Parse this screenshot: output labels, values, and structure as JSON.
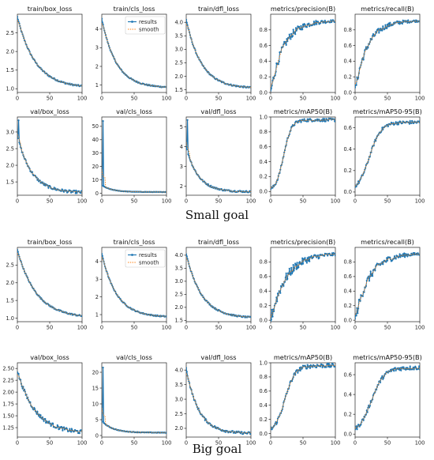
{
  "captions": [
    "Small goal",
    "Big goal"
  ],
  "legend": {
    "results": "results",
    "smooth": "smooth"
  },
  "colors": {
    "results": "#1f77b4",
    "smooth": "#ff7f0e"
  },
  "chart_data": [
    {
      "group": "Small goal",
      "type": "line",
      "panels": [
        {
          "title": "train/box_loss",
          "xlim": [
            0,
            100
          ],
          "ylim": [
            0.9,
            3.0
          ],
          "yticks": [
            1.0,
            1.5,
            2.0,
            2.5
          ],
          "xticks": [
            0,
            50,
            100
          ],
          "curve": {
            "kind": "decay",
            "start": 2.93,
            "end": 1.02,
            "rate": 3.6,
            "noise": 0.02,
            "late": 0.0
          }
        },
        {
          "title": "train/cls_loss",
          "xlim": [
            0,
            100
          ],
          "ylim": [
            0.6,
            4.8
          ],
          "yticks": [
            1,
            2,
            3,
            4
          ],
          "xticks": [
            0,
            50,
            100
          ],
          "legend": true,
          "curve": {
            "kind": "decay",
            "start": 4.55,
            "end": 0.85,
            "rate": 4.5,
            "noise": 0.03,
            "late": 0.0
          }
        },
        {
          "title": "train/dfl_loss",
          "xlim": [
            0,
            100
          ],
          "ylim": [
            1.4,
            4.3
          ],
          "yticks": [
            1.5,
            2.0,
            2.5,
            3.0,
            3.5,
            4.0
          ],
          "xticks": [
            0,
            50,
            100
          ],
          "curve": {
            "kind": "decay",
            "start": 4.1,
            "end": 1.55,
            "rate": 4.3,
            "noise": 0.025,
            "late": 0.0
          }
        },
        {
          "title": "metrics/precision(B)",
          "xlim": [
            0,
            100
          ],
          "ylim": [
            0.0,
            1.0
          ],
          "yticks": [
            0.0,
            0.2,
            0.4,
            0.6,
            0.8
          ],
          "xticks": [
            0,
            50,
            100
          ],
          "curve": {
            "kind": "rise",
            "start": 0.0,
            "end": 0.92,
            "rate": 5.0,
            "noise": 0.06,
            "late": 0.0
          }
        },
        {
          "title": "metrics/recall(B)",
          "xlim": [
            0,
            100
          ],
          "ylim": [
            0.0,
            1.0
          ],
          "yticks": [
            0.0,
            0.2,
            0.4,
            0.6,
            0.8
          ],
          "xticks": [
            0,
            50,
            100
          ],
          "curve": {
            "kind": "rise",
            "start": 0.02,
            "end": 0.92,
            "rate": 5.2,
            "noise": 0.05,
            "late": 0.0
          }
        },
        {
          "title": "val/box_loss",
          "xlim": [
            0,
            100
          ],
          "ylim": [
            1.1,
            3.45
          ],
          "yticks": [
            1.5,
            2.0,
            2.5,
            3.0
          ],
          "xticks": [
            0,
            50,
            100
          ],
          "curve": {
            "kind": "decay",
            "start": 2.9,
            "end": 1.17,
            "rate": 4.6,
            "noise": 0.04,
            "spike": [
              2,
              3.35
            ],
            "late": 0.0
          }
        },
        {
          "title": "val/cls_loss",
          "xlim": [
            0,
            100
          ],
          "ylim": [
            -1.5,
            57.0
          ],
          "yticks": [
            0,
            10,
            20,
            30,
            40,
            50
          ],
          "xticks": [
            0,
            50,
            100
          ],
          "curve": {
            "kind": "decay",
            "start": 6.0,
            "end": 0.9,
            "rate": 6.5,
            "noise": 0.12,
            "spike": [
              2,
              54.0
            ],
            "late": 0.0
          }
        },
        {
          "title": "val/dfl_loss",
          "xlim": [
            0,
            100
          ],
          "ylim": [
            1.55,
            5.5
          ],
          "yticks": [
            2,
            3,
            4,
            5
          ],
          "xticks": [
            0,
            50,
            100
          ],
          "curve": {
            "kind": "decay",
            "start": 4.0,
            "end": 1.72,
            "rate": 5.5,
            "noise": 0.04,
            "spike": [
              2,
              5.35
            ],
            "late": 0.0
          }
        },
        {
          "title": "metrics/mAP50(B)",
          "xlim": [
            0,
            100
          ],
          "ylim": [
            -0.05,
            1.0
          ],
          "yticks": [
            0.0,
            0.2,
            0.4,
            0.6,
            0.8,
            1.0
          ],
          "xticks": [
            0,
            50,
            100
          ],
          "curve": {
            "kind": "sigmoid",
            "start": 0.0,
            "end": 0.96,
            "mid": 20,
            "width": 6,
            "noise": 0.02,
            "late": 0.0
          }
        },
        {
          "title": "metrics/mAP50-95(B)",
          "xlim": [
            0,
            100
          ],
          "ylim": [
            -0.03,
            0.7
          ],
          "yticks": [
            0.0,
            0.2,
            0.4,
            0.6
          ],
          "xticks": [
            0,
            50,
            100
          ],
          "curve": {
            "kind": "sigmoid",
            "start": 0.0,
            "end": 0.65,
            "mid": 22,
            "width": 9,
            "noise": 0.015,
            "late": 0.0
          }
        }
      ]
    },
    {
      "group": "Big goal",
      "type": "line",
      "panels": [
        {
          "title": "train/box_loss",
          "xlim": [
            0,
            100
          ],
          "ylim": [
            0.9,
            3.0
          ],
          "yticks": [
            1.0,
            1.5,
            2.0,
            2.5
          ],
          "xticks": [
            0,
            50,
            100
          ],
          "curve": {
            "kind": "decay",
            "start": 2.93,
            "end": 1.0,
            "rate": 3.4,
            "noise": 0.02,
            "late": 0.0
          }
        },
        {
          "title": "train/cls_loss",
          "xlim": [
            0,
            100
          ],
          "ylim": [
            0.6,
            4.8
          ],
          "yticks": [
            1,
            2,
            3,
            4
          ],
          "xticks": [
            0,
            50,
            100
          ],
          "legend": true,
          "curve": {
            "kind": "decay",
            "start": 4.45,
            "end": 0.85,
            "rate": 4.4,
            "noise": 0.03,
            "late": 0.0
          }
        },
        {
          "title": "train/dfl_loss",
          "xlim": [
            0,
            100
          ],
          "ylim": [
            1.45,
            4.3
          ],
          "yticks": [
            1.5,
            2.0,
            2.5,
            3.0,
            3.5,
            4.0
          ],
          "xticks": [
            0,
            50,
            100
          ],
          "curve": {
            "kind": "decay",
            "start": 4.05,
            "end": 1.58,
            "rate": 4.2,
            "noise": 0.025,
            "late": 0.0
          }
        },
        {
          "title": "metrics/precision(B)",
          "xlim": [
            0,
            100
          ],
          "ylim": [
            -0.02,
            1.0
          ],
          "yticks": [
            0.0,
            0.2,
            0.4,
            0.6,
            0.8
          ],
          "xticks": [
            0,
            50,
            100
          ],
          "curve": {
            "kind": "rise",
            "start": 0.0,
            "end": 0.92,
            "rate": 4.2,
            "noise": 0.08,
            "late": 0.0
          }
        },
        {
          "title": "metrics/recall(B)",
          "xlim": [
            0,
            100
          ],
          "ylim": [
            -0.02,
            1.0
          ],
          "yticks": [
            0.0,
            0.2,
            0.4,
            0.6,
            0.8
          ],
          "xticks": [
            0,
            50,
            100
          ],
          "curve": {
            "kind": "rise",
            "start": 0.0,
            "end": 0.92,
            "rate": 4.6,
            "noise": 0.07,
            "late": 0.0
          }
        },
        {
          "title": "val/box_loss",
          "xlim": [
            0,
            100
          ],
          "ylim": [
            1.05,
            2.62
          ],
          "yticks": [
            1.25,
            1.5,
            1.75,
            2.0,
            2.25,
            2.5
          ],
          "xticks": [
            0,
            50,
            100
          ],
          "curve": {
            "kind": "decay",
            "start": 2.45,
            "end": 1.12,
            "rate": 3.6,
            "noise": 0.04,
            "late": 0.0
          }
        },
        {
          "title": "val/cls_loss",
          "xlim": [
            0,
            100
          ],
          "ylim": [
            -0.5,
            23.0
          ],
          "yticks": [
            0,
            5,
            10,
            15,
            20
          ],
          "xticks": [
            0,
            50,
            100
          ],
          "curve": {
            "kind": "decay",
            "start": 4.6,
            "end": 0.9,
            "rate": 6.0,
            "noise": 0.08,
            "spike": [
              2,
              21.5
            ],
            "late": 0.0
          }
        },
        {
          "title": "val/dfl_loss",
          "xlim": [
            0,
            100
          ],
          "ylim": [
            1.7,
            4.25
          ],
          "yticks": [
            2.0,
            2.5,
            3.0,
            3.5,
            4.0
          ],
          "xticks": [
            0,
            50,
            100
          ],
          "curve": {
            "kind": "decay",
            "start": 4.05,
            "end": 1.82,
            "rate": 5.2,
            "noise": 0.04,
            "late": 0.0
          }
        },
        {
          "title": "metrics/mAP50(B)",
          "xlim": [
            0,
            100
          ],
          "ylim": [
            -0.05,
            1.0
          ],
          "yticks": [
            0.0,
            0.2,
            0.4,
            0.6,
            0.8,
            1.0
          ],
          "xticks": [
            0,
            50,
            100
          ],
          "curve": {
            "kind": "sigmoid",
            "start": 0.0,
            "end": 0.96,
            "mid": 22,
            "width": 8,
            "noise": 0.03,
            "late": 0.0
          }
        },
        {
          "title": "metrics/mAP50-95(B)",
          "xlim": [
            0,
            100
          ],
          "ylim": [
            -0.03,
            0.72
          ],
          "yticks": [
            0.0,
            0.2,
            0.4,
            0.6
          ],
          "xticks": [
            0,
            50,
            100
          ],
          "curve": {
            "kind": "sigmoid",
            "start": 0.0,
            "end": 0.67,
            "mid": 25,
            "width": 10,
            "noise": 0.02,
            "late": 0.0
          }
        }
      ]
    }
  ]
}
